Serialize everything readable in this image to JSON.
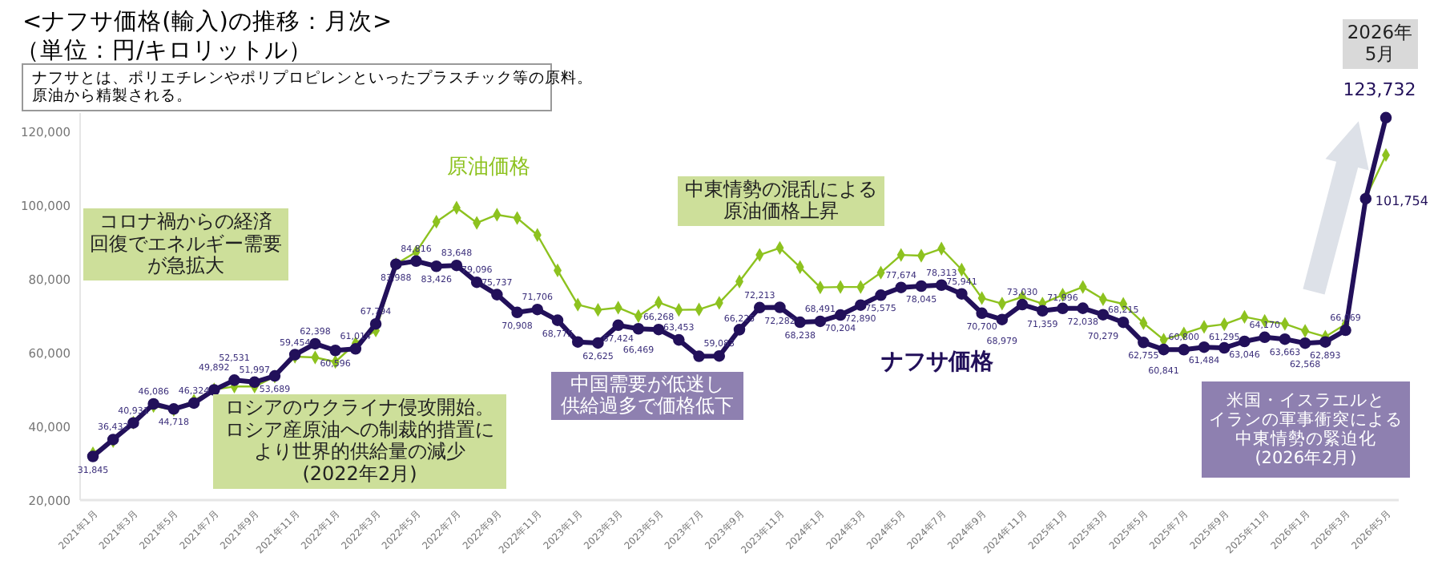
{
  "chart_data": {
    "type": "line",
    "title": "<ナフサ価格(輸入)の推移：月次>",
    "subtitle": "（単位：円/キロリットル）",
    "categories": [
      "2021年1月",
      null,
      "2021年3月",
      null,
      "2021年5月",
      null,
      "2021年7月",
      null,
      "2021年9月",
      null,
      "2021年11月",
      null,
      "2022年1月",
      null,
      "2022年3月",
      null,
      "2022年5月",
      null,
      "2022年7月",
      null,
      "2022年9月",
      null,
      "2022年11月",
      null,
      "2023年1月",
      null,
      "2023年3月",
      null,
      "2023年5月",
      null,
      "2023年7月",
      null,
      "2023年9月",
      null,
      "2023年11月",
      null,
      "2024年1月",
      null,
      "2024年3月",
      null,
      "2024年5月",
      null,
      "2024年7月",
      null,
      "2024年9月",
      null,
      "2024年11月",
      null,
      "2025年1月",
      null,
      "2025年3月",
      null,
      "2025年5月",
      null,
      "2025年7月",
      null,
      "2025年9月",
      null,
      "2025年11月",
      null,
      "2026年1月",
      null,
      "2026年3月",
      null,
      "2026年5月"
    ],
    "series": [
      {
        "name": "ナフサ価格",
        "color": "#22105a",
        "marker": "circle",
        "values": [
          31845,
          36432,
          40931,
          46086,
          44718,
          46324,
          49892,
          52531,
          51997,
          53689,
          59454,
          62398,
          60596,
          61014,
          67794,
          83988,
          84816,
          83426,
          83648,
          79096,
          75737,
          70908,
          71706,
          68775,
          62900,
          62625,
          67424,
          66469,
          66268,
          63453,
          59000,
          59083,
          66225,
          72213,
          72282,
          68238,
          68491,
          70204,
          72890,
          75575,
          77674,
          78045,
          78313,
          75941,
          70700,
          68979,
          73030,
          71359,
          71996,
          72038,
          70279,
          68215,
          62755,
          60841,
          60800,
          61484,
          61295,
          63046,
          64170,
          63663,
          62568,
          62893,
          66069,
          101754,
          123732
        ],
        "value_labels": [
          "31,845",
          "36,432",
          "40,931",
          "46,086",
          "44,718",
          "46,324",
          "49,892",
          "52,531",
          "51,997",
          "53,689",
          "59,454",
          "62,398",
          "60,596",
          "61,014",
          "67,794",
          "83,988",
          "84,816",
          "83,426",
          "83,648",
          "79,096",
          "75,737",
          "70,908",
          "71,706",
          "68,775",
          null,
          "62,625",
          "67,424",
          "66,469",
          "66,268",
          "63,453",
          null,
          "59,083",
          "66,225",
          "72,213",
          "72,282",
          "68,238",
          "68,491",
          "70,204",
          "72,890",
          "75,575",
          "77,674",
          "78,045",
          "78,313",
          "75,941",
          "70,700",
          "68,979",
          "73,030",
          "71,359",
          "71,996",
          "72,038",
          "70,279",
          "68,215",
          "62,755",
          "60,841",
          "60,800",
          "61,484",
          "61,295",
          "63,046",
          "64,170",
          "63,663",
          "62,568",
          "62,893",
          "66,069",
          "101,754",
          "123,732"
        ]
      },
      {
        "name": "原油価格",
        "color": "#8dc21f",
        "marker": "diamond",
        "values": [
          32700,
          36000,
          41000,
          45500,
          44500,
          47000,
          50000,
          50800,
          50800,
          53500,
          58900,
          58700,
          57500,
          62500,
          66000,
          84000,
          87300,
          95500,
          99300,
          95200,
          97400,
          96500,
          91900,
          82300,
          73000,
          71600,
          72200,
          69900,
          73600,
          71600,
          71700,
          73500,
          79300,
          86500,
          88400,
          83200,
          77700,
          77800,
          77800,
          81700,
          86500,
          86300,
          88200,
          82500,
          74800,
          73300,
          75100,
          73300,
          75700,
          77800,
          74500,
          73200,
          68000,
          63500,
          65200,
          67000,
          67700,
          69700,
          68600,
          67800,
          65900,
          64300,
          67700,
          102000,
          113600
        ]
      }
    ],
    "ylim": [
      20000,
      125000
    ],
    "yticks": [
      {
        "value": 20000,
        "label": "20,000"
      },
      {
        "value": 40000,
        "label": "40,000"
      },
      {
        "value": 60000,
        "label": "60,000"
      },
      {
        "value": 80000,
        "label": "80,000"
      },
      {
        "value": 100000,
        "label": "100,000"
      },
      {
        "value": 120000,
        "label": "120,000"
      }
    ],
    "grid": false,
    "line_style": "solid",
    "annotations": [
      "ナフサとは、ポリエチレンやポリプロピレンといったプラスチック等の原料。原油から精製される。",
      "コロナ禍からの経済回復でエネルギー需要が急拡大",
      "ロシアのウクライナ侵攻開始。ロシア産原油への制裁的措置により世界的供給量の減少(2022年2月)",
      "中国需要が低迷し供給過多で価格低下",
      "中東情勢の混乱による原油価格上昇",
      "米国・イスラエルとイランの軍事衝突による中東情勢の緊迫化(2026年2月)",
      "2026年5月"
    ]
  }
}
